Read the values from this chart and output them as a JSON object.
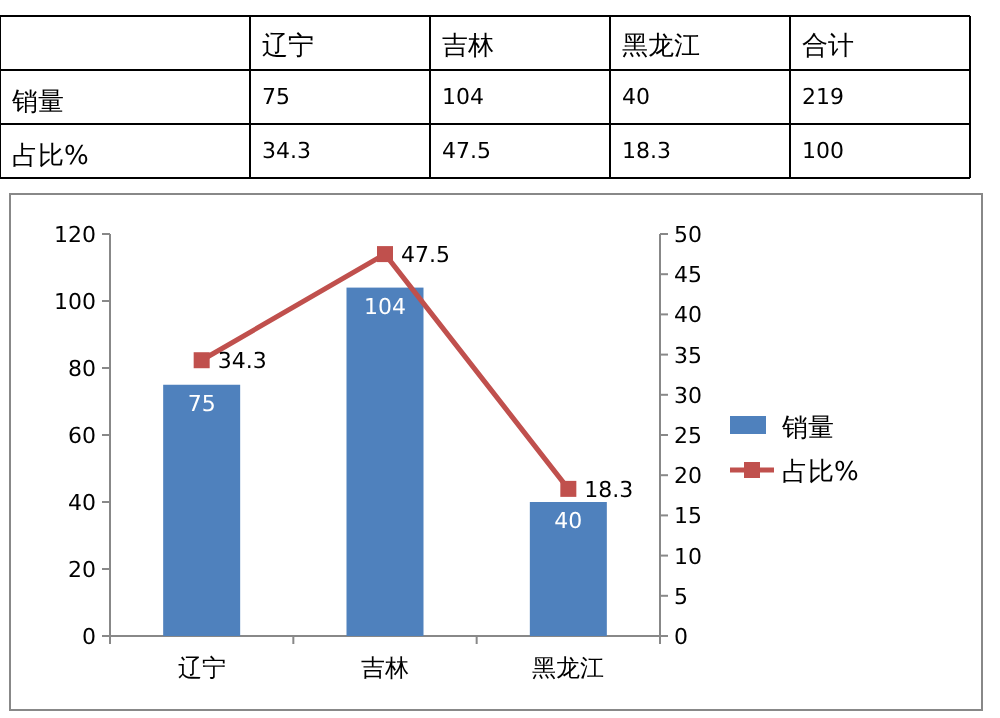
{
  "chart_data": {
    "type": "bar",
    "categories": [
      "辽宁",
      "吉林",
      "黑龙江"
    ],
    "series": [
      {
        "name": "销量",
        "color": "#4f81bd",
        "values": [
          75,
          104,
          40
        ]
      },
      {
        "name": "占比%",
        "type": "line",
        "axis": "y2",
        "color": "#c0504d",
        "values": [
          34.3,
          47.5,
          18.3
        ]
      }
    ],
    "ylim": [
      0,
      120
    ],
    "yticks": [
      0,
      20,
      40,
      60,
      80,
      100,
      120
    ],
    "y2lim": [
      0,
      50
    ],
    "y2ticks": [
      0,
      5,
      10,
      15,
      20,
      25,
      30,
      35,
      40,
      45,
      50
    ],
    "legend": "right",
    "marker": "square",
    "data_labels": true,
    "grid": false,
    "annotations": [
      "合计",
      "75",
      "104",
      "40",
      "219",
      "34.3",
      "47.5",
      "18.3",
      "100"
    ]
  }
}
